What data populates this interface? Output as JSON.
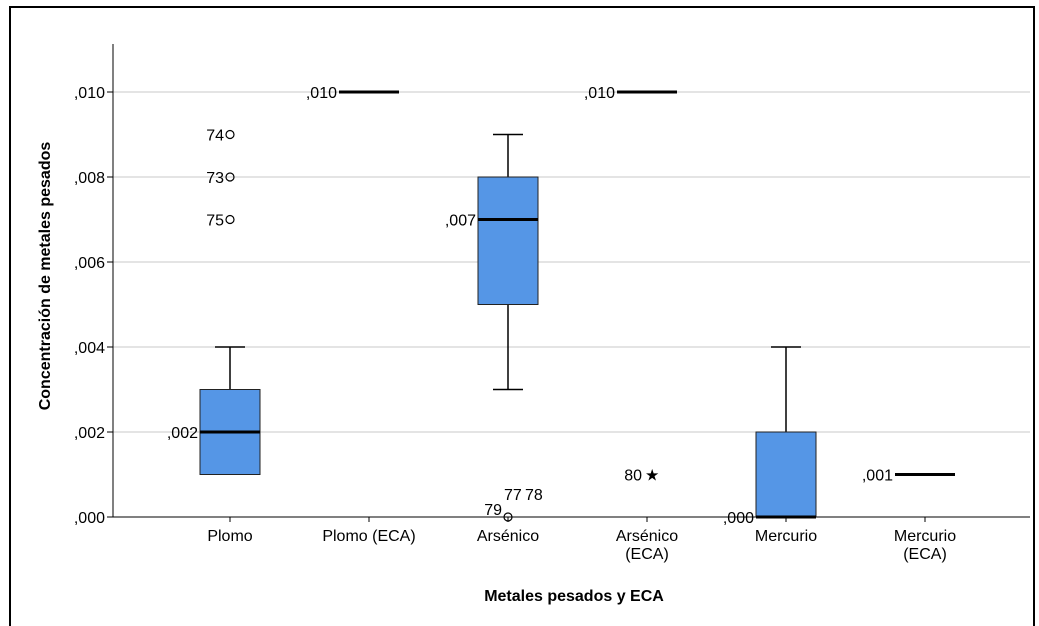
{
  "chart_data": {
    "type": "boxplot",
    "xlabel": "Metales pesados y ECA",
    "ylabel": "Concentración de metales pesados",
    "ylim": [
      0,
      0.011
    ],
    "yticks": [
      {
        "value": 0.0,
        "label": ",000"
      },
      {
        "value": 0.002,
        "label": ",002"
      },
      {
        "value": 0.004,
        "label": ",004"
      },
      {
        "value": 0.006,
        "label": ",006"
      },
      {
        "value": 0.008,
        "label": ",008"
      },
      {
        "value": 0.01,
        "label": ",010"
      }
    ],
    "grid": true,
    "box_color": "#5596e6",
    "categories": [
      {
        "label": [
          "Plomo"
        ],
        "min": 0.001,
        "q1": 0.001,
        "median": 0.002,
        "q3": 0.003,
        "max": 0.004,
        "median_label": ",002",
        "outliers": [
          {
            "value": 0.009,
            "label": "74",
            "marker": "circle"
          },
          {
            "value": 0.008,
            "label": "73",
            "marker": "circle"
          },
          {
            "value": 0.007,
            "label": "75",
            "marker": "circle"
          }
        ]
      },
      {
        "label": [
          "Plomo (ECA)"
        ],
        "median": 0.01,
        "median_label": ",010",
        "outliers": []
      },
      {
        "label": [
          "Arsénico"
        ],
        "min": 0.003,
        "q1": 0.005,
        "median": 0.007,
        "q3": 0.008,
        "max": 0.009,
        "median_label": ",007",
        "outliers": [
          {
            "value": 0.0,
            "label": "79",
            "marker": "circle"
          },
          {
            "value": 0.0,
            "label": "77",
            "marker": "none"
          },
          {
            "value": 0.0,
            "label": "78",
            "marker": "none"
          }
        ]
      },
      {
        "label": [
          "Arsénico",
          "(ECA)"
        ],
        "median": 0.01,
        "median_label": ",010",
        "outliers": [
          {
            "value": 0.001,
            "label": "80",
            "marker": "star"
          }
        ]
      },
      {
        "label": [
          "Mercurio"
        ],
        "min": 0.0,
        "q1": 0.0,
        "median": 0.0,
        "q3": 0.002,
        "max": 0.004,
        "median_label": ",000",
        "outliers": []
      },
      {
        "label": [
          "Mercurio",
          "(ECA)"
        ],
        "median": 0.001,
        "median_label": ",001",
        "outliers": []
      }
    ]
  }
}
